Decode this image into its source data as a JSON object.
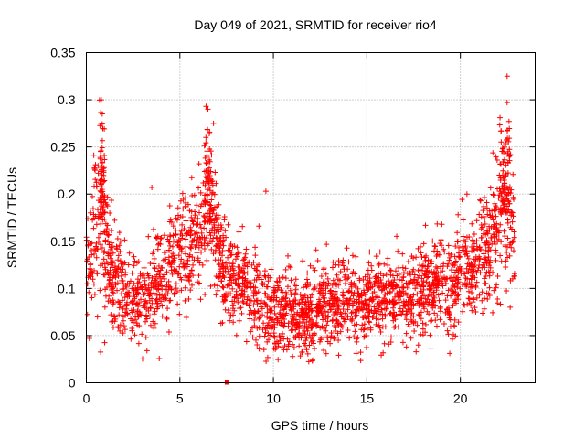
{
  "chart_data": {
    "type": "scatter",
    "title": "Day 049 of 2021, SRMTID for receiver rio4",
    "xlabel": "GPS time / hours",
    "ylabel": "SRMTID / TECUs",
    "xlim": [
      0,
      24
    ],
    "ylim": [
      0,
      0.35
    ],
    "grid": true,
    "marker": "+",
    "color": "#ff0000",
    "xticks": [
      0,
      5,
      10,
      15,
      20
    ],
    "xtick_labels": [
      "0",
      "5",
      "10",
      "15",
      "20"
    ],
    "yticks": [
      0,
      0.05,
      0.1,
      0.15,
      0.2,
      0.25,
      0.3,
      0.35
    ],
    "ytick_labels": [
      "0",
      "0.05",
      "0.1",
      "0.15",
      "0.2",
      "0.25",
      "0.3",
      "0.35"
    ],
    "approximate_profile": {
      "description": "Dense scatter of SRMTID values vs time; trend approximated",
      "x": [
        0,
        0.4,
        0.8,
        1.2,
        2,
        3,
        4,
        4.5,
        5,
        5.5,
        6,
        6.5,
        6.8,
        7.2,
        8,
        9,
        10,
        11,
        12,
        13,
        14,
        15,
        16,
        17,
        18,
        18.8,
        19.5,
        20,
        20.5,
        21,
        21.5,
        22,
        22.4,
        22.8
      ],
      "y": [
        0.13,
        0.15,
        0.18,
        0.12,
        0.09,
        0.09,
        0.11,
        0.13,
        0.14,
        0.14,
        0.15,
        0.18,
        0.17,
        0.12,
        0.1,
        0.09,
        0.07,
        0.075,
        0.075,
        0.08,
        0.085,
        0.085,
        0.09,
        0.09,
        0.1,
        0.11,
        0.09,
        0.12,
        0.12,
        0.12,
        0.14,
        0.17,
        0.19,
        0.15
      ],
      "spread": [
        0.06,
        0.07,
        0.08,
        0.06,
        0.045,
        0.045,
        0.05,
        0.05,
        0.05,
        0.05,
        0.05,
        0.07,
        0.07,
        0.05,
        0.045,
        0.045,
        0.04,
        0.04,
        0.04,
        0.04,
        0.04,
        0.04,
        0.04,
        0.04,
        0.045,
        0.05,
        0.045,
        0.05,
        0.05,
        0.05,
        0.06,
        0.07,
        0.08,
        0.06
      ]
    },
    "peaks": [
      {
        "x": 0.8,
        "y": 0.3
      },
      {
        "x": 0.85,
        "y": 0.285
      },
      {
        "x": 6.4,
        "y": 0.293
      },
      {
        "x": 6.5,
        "y": 0.29
      },
      {
        "x": 6.8,
        "y": 0.275
      },
      {
        "x": 22.5,
        "y": 0.325
      },
      {
        "x": 22.5,
        "y": 0.297
      },
      {
        "x": 22.6,
        "y": 0.277
      },
      {
        "x": 9.6,
        "y": 0.203
      },
      {
        "x": 3.5,
        "y": 0.207
      }
    ],
    "outliers": [
      {
        "x": 7.5,
        "y": 0.0
      }
    ]
  }
}
